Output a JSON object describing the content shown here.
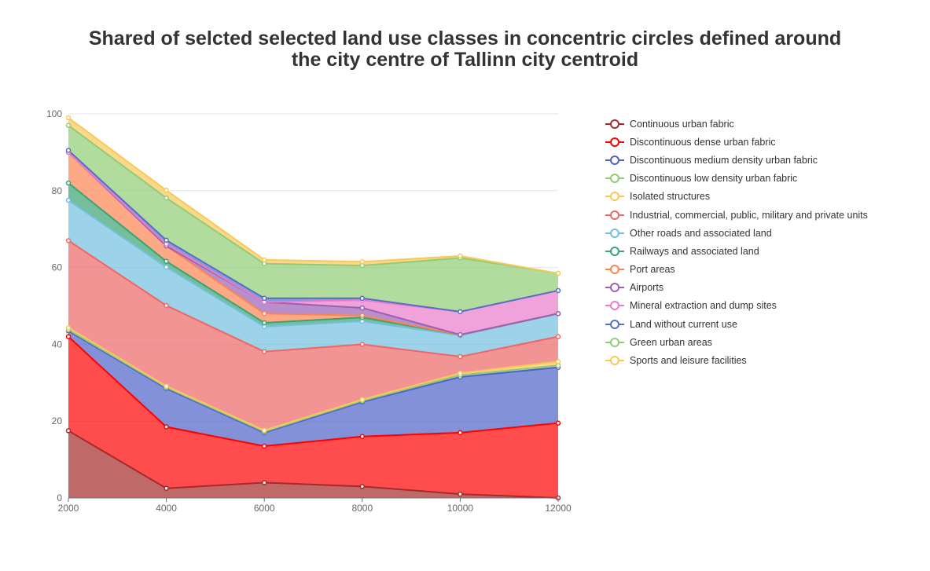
{
  "chart_data": {
    "type": "area",
    "stacked": true,
    "title_lines": [
      "Shared of selcted selected land use classes in concentric circles defined around",
      "the city centre of Tallinn city centroid"
    ],
    "x": [
      2000,
      4000,
      6000,
      8000,
      10000,
      12000
    ],
    "xlim": [
      2000,
      12000
    ],
    "ylim": [
      0,
      100
    ],
    "y_ticks": [
      0,
      20,
      40,
      60,
      80,
      100
    ],
    "x_ticks": [
      2000,
      4000,
      6000,
      8000,
      10000,
      12000
    ],
    "legend_position": "right",
    "grid": true,
    "series": [
      {
        "name": "Continuous urban fabric",
        "color": "#a52a2a",
        "values": [
          17.5,
          2.5,
          4.0,
          3.0,
          1.0,
          0.0
        ]
      },
      {
        "name": "Discontinuous dense urban fabric",
        "color": "#ff0000",
        "values": [
          24.5,
          16.0,
          9.5,
          13.0,
          16.0,
          19.5
        ]
      },
      {
        "name": "Discontinuous medium density urban fabric",
        "color": "#4f62c9",
        "values": [
          1.5,
          10.0,
          3.5,
          9.0,
          14.5,
          14.5
        ]
      },
      {
        "name": "Discontinuous low density urban fabric",
        "color": "#91cc75",
        "values": [
          0.3,
          0.3,
          0.3,
          0.3,
          0.5,
          0.5
        ]
      },
      {
        "name": "Isolated structures",
        "color": "#fac858",
        "values": [
          0.5,
          0.3,
          0.3,
          0.3,
          0.5,
          1.0
        ]
      },
      {
        "name": "Industrial, commercial, public, military and private units",
        "color": "#ee6666",
        "values": [
          22.7,
          21.0,
          20.5,
          14.4,
          4.3,
          6.5
        ]
      },
      {
        "name": "Other roads and associated land",
        "color": "#73c0de",
        "values": [
          10.5,
          10.0,
          6.5,
          6.0,
          5.5,
          6.0
        ]
      },
      {
        "name": "Railways and associated land",
        "color": "#3ba272",
        "values": [
          4.5,
          1.5,
          1.0,
          1.0,
          0.2,
          0.0
        ]
      },
      {
        "name": "Port areas",
        "color": "#fc8452",
        "values": [
          8.0,
          4.0,
          2.4,
          0.5,
          0.0,
          0.0
        ]
      },
      {
        "name": "Airports",
        "color": "#9a60b4",
        "values": [
          0.0,
          0.0,
          3.0,
          2.0,
          0.0,
          0.0
        ]
      },
      {
        "name": "Mineral extraction and dump sites",
        "color": "#ea7ccc",
        "values": [
          0.0,
          0.5,
          0.0,
          2.0,
          6.0,
          6.0
        ]
      },
      {
        "name": "Land without current use",
        "color": "#5470c6",
        "values": [
          0.5,
          1.0,
          1.0,
          0.5,
          0.0,
          0.0
        ]
      },
      {
        "name": "Green urban areas",
        "color": "#91cc75",
        "values": [
          6.5,
          11.0,
          9.0,
          8.5,
          14.0,
          4.5
        ]
      },
      {
        "name": "Sports and leisure facilities",
        "color": "#fac858",
        "values": [
          2.0,
          2.0,
          1.0,
          1.0,
          0.5,
          0.0
        ]
      }
    ]
  }
}
